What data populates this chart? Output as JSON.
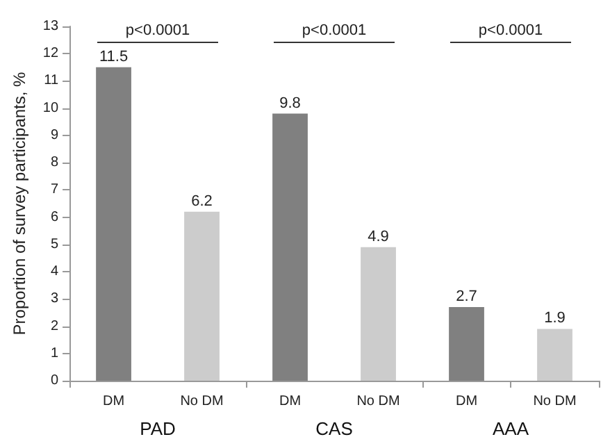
{
  "chart_data": {
    "type": "bar",
    "ylabel": "Proportion of survey participants, %",
    "categories": [
      "DM",
      "No DM",
      "DM",
      "No DM",
      "DM",
      "No DM"
    ],
    "values": [
      11.5,
      6.2,
      9.8,
      4.9,
      2.7,
      1.9
    ],
    "colors": [
      "#808080",
      "#cccccc",
      "#808080",
      "#cccccc",
      "#808080",
      "#cccccc"
    ],
    "ylim": [
      0,
      13
    ],
    "yticks": [
      0,
      1,
      2,
      3,
      4,
      5,
      6,
      7,
      8,
      9,
      10,
      11,
      12,
      13
    ],
    "grid": false,
    "data_labels": true,
    "annotations": [
      "p<0.0001",
      "p<0.0001",
      "p<0.0001",
      "PAD",
      "CAS",
      "AAA"
    ]
  }
}
